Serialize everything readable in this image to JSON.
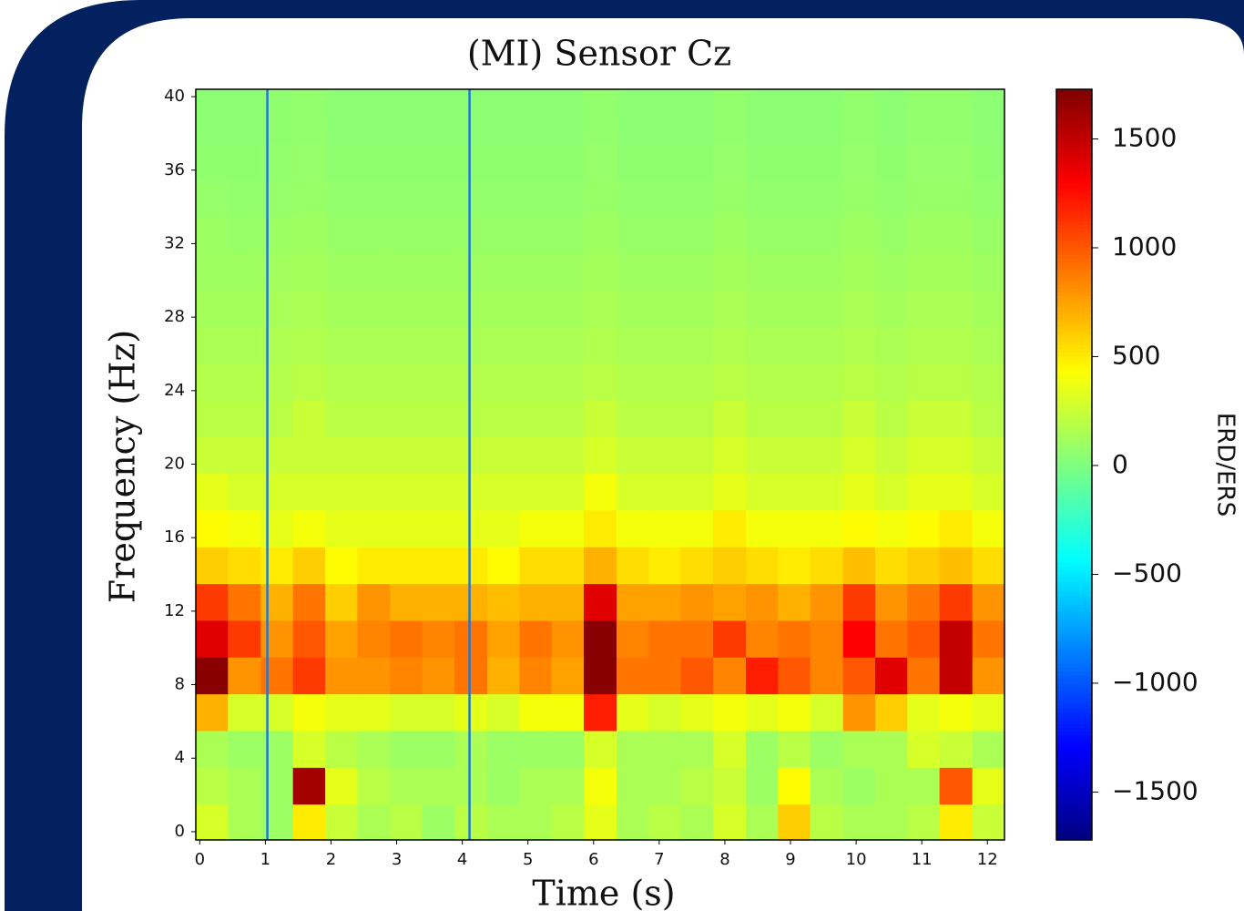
{
  "chart_data": {
    "type": "heatmap",
    "title": "(MI) Sensor Cz",
    "xlabel": "Time (s)",
    "ylabel": "Frequency (Hz)",
    "colorbar_label": "ERD/ERS",
    "colormap": "jet",
    "x_edges": [
      -0.06,
      0.43,
      0.93,
      1.42,
      1.91,
      2.4,
      2.9,
      3.39,
      3.88,
      4.38,
      4.87,
      5.36,
      5.85,
      6.35,
      6.84,
      7.33,
      7.82,
      8.32,
      8.81,
      9.3,
      9.8,
      10.29,
      10.78,
      11.27,
      11.77,
      12.26
    ],
    "y_edges": [
      -0.45,
      1.5,
      3.5,
      5.5,
      7.5,
      9.5,
      11.5,
      13.5,
      15.5,
      17.5,
      19.5,
      21.5,
      23.5,
      25.5,
      27.5,
      29.5,
      31.5,
      33.5,
      35.5,
      37.5,
      39.5,
      40.4
    ],
    "values": [
      [
        300,
        150,
        100,
        500,
        250,
        150,
        200,
        100,
        200,
        150,
        150,
        200,
        350,
        150,
        200,
        150,
        300,
        150,
        600,
        200,
        150,
        150,
        200,
        500,
        250
      ],
      [
        200,
        150,
        100,
        1600,
        350,
        200,
        150,
        150,
        150,
        100,
        150,
        150,
        400,
        150,
        150,
        200,
        250,
        100,
        450,
        150,
        100,
        150,
        150,
        1000,
        350
      ],
      [
        150,
        100,
        100,
        300,
        200,
        150,
        100,
        100,
        150,
        100,
        100,
        100,
        300,
        150,
        150,
        150,
        300,
        100,
        200,
        100,
        150,
        150,
        300,
        250,
        150
      ],
      [
        700,
        300,
        300,
        400,
        350,
        350,
        300,
        300,
        350,
        300,
        400,
        400,
        1200,
        350,
        300,
        350,
        400,
        350,
        400,
        300,
        800,
        600,
        350,
        400,
        350
      ],
      [
        1700,
        800,
        900,
        1100,
        800,
        800,
        850,
        800,
        900,
        700,
        850,
        750,
        1700,
        900,
        900,
        1000,
        850,
        1200,
        1000,
        850,
        1000,
        1400,
        900,
        1500,
        800
      ],
      [
        1400,
        1100,
        800,
        1000,
        750,
        850,
        900,
        850,
        900,
        750,
        900,
        800,
        1700,
        850,
        900,
        900,
        1100,
        850,
        900,
        850,
        1300,
        900,
        1000,
        1500,
        900
      ],
      [
        1100,
        900,
        700,
        900,
        600,
        800,
        700,
        700,
        700,
        650,
        700,
        700,
        1400,
        750,
        750,
        800,
        750,
        800,
        700,
        800,
        1100,
        800,
        900,
        1100,
        800
      ],
      [
        600,
        550,
        500,
        600,
        450,
        500,
        500,
        500,
        500,
        450,
        550,
        550,
        700,
        550,
        500,
        550,
        600,
        550,
        500,
        550,
        650,
        550,
        600,
        650,
        550
      ],
      [
        450,
        400,
        350,
        400,
        350,
        350,
        350,
        350,
        350,
        350,
        400,
        400,
        500,
        400,
        400,
        400,
        500,
        400,
        400,
        400,
        450,
        400,
        450,
        500,
        400
      ],
      [
        350,
        300,
        300,
        300,
        300,
        300,
        300,
        300,
        300,
        300,
        300,
        300,
        400,
        300,
        300,
        300,
        350,
        300,
        300,
        300,
        350,
        300,
        350,
        350,
        300
      ],
      [
        250,
        250,
        250,
        250,
        250,
        250,
        250,
        250,
        250,
        250,
        250,
        250,
        300,
        250,
        250,
        250,
        300,
        250,
        250,
        250,
        300,
        250,
        300,
        300,
        250
      ],
      [
        200,
        200,
        200,
        250,
        200,
        200,
        200,
        200,
        200,
        200,
        200,
        200,
        250,
        200,
        200,
        200,
        250,
        200,
        200,
        200,
        250,
        200,
        250,
        250,
        200
      ],
      [
        180,
        180,
        180,
        200,
        180,
        180,
        180,
        180,
        180,
        180,
        180,
        180,
        200,
        180,
        180,
        180,
        200,
        180,
        180,
        180,
        200,
        180,
        200,
        200,
        180
      ],
      [
        150,
        150,
        160,
        170,
        150,
        150,
        150,
        150,
        150,
        150,
        150,
        150,
        170,
        150,
        150,
        150,
        170,
        150,
        150,
        150,
        170,
        150,
        170,
        170,
        150
      ],
      [
        130,
        130,
        140,
        150,
        130,
        130,
        130,
        130,
        130,
        130,
        130,
        130,
        150,
        130,
        130,
        130,
        150,
        130,
        130,
        130,
        150,
        130,
        150,
        150,
        130
      ],
      [
        110,
        110,
        120,
        130,
        110,
        110,
        110,
        110,
        110,
        110,
        110,
        110,
        130,
        110,
        110,
        110,
        130,
        110,
        110,
        110,
        130,
        110,
        130,
        130,
        110
      ],
      [
        100,
        90,
        100,
        110,
        90,
        90,
        90,
        90,
        90,
        90,
        90,
        90,
        110,
        90,
        90,
        90,
        110,
        90,
        90,
        90,
        110,
        90,
        110,
        110,
        90
      ],
      [
        80,
        70,
        80,
        90,
        70,
        70,
        70,
        70,
        70,
        70,
        70,
        70,
        90,
        70,
        70,
        70,
        90,
        70,
        70,
        70,
        90,
        70,
        90,
        90,
        70
      ],
      [
        60,
        60,
        70,
        80,
        60,
        60,
        60,
        60,
        60,
        60,
        60,
        60,
        80,
        60,
        60,
        60,
        80,
        60,
        60,
        60,
        80,
        60,
        80,
        80,
        60
      ],
      [
        50,
        50,
        60,
        70,
        50,
        50,
        50,
        50,
        50,
        50,
        50,
        50,
        70,
        50,
        50,
        50,
        70,
        50,
        50,
        50,
        70,
        50,
        70,
        70,
        50
      ],
      [
        50,
        50,
        60,
        70,
        50,
        50,
        50,
        50,
        50,
        50,
        50,
        50,
        70,
        50,
        50,
        50,
        70,
        50,
        50,
        50,
        70,
        50,
        70,
        70,
        50
      ]
    ],
    "xlim": [
      -0.06,
      12.26
    ],
    "ylim": [
      -0.45,
      40.4
    ],
    "xticks": [
      0,
      1,
      2,
      3,
      4,
      5,
      6,
      7,
      8,
      9,
      10,
      11,
      12
    ],
    "yticks": [
      0,
      4,
      8,
      12,
      16,
      20,
      24,
      28,
      32,
      36,
      40
    ],
    "clim": [
      -1720,
      1728
    ],
    "cticks": [
      {
        "value": -1500,
        "label": "−1500"
      },
      {
        "value": -1000,
        "label": "−1000"
      },
      {
        "value": -500,
        "label": "−500"
      },
      0,
      500,
      1000,
      1500
    ],
    "vlines": [
      1.03,
      4.11
    ],
    "vline_color": "#1f77d4"
  }
}
